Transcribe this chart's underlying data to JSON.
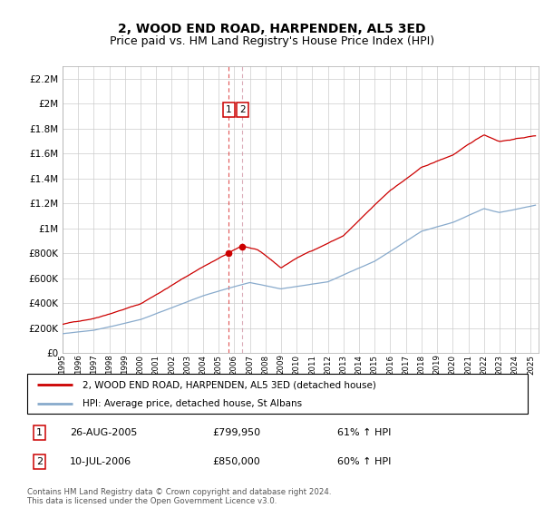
{
  "title": "2, WOOD END ROAD, HARPENDEN, AL5 3ED",
  "subtitle": "Price paid vs. HM Land Registry's House Price Index (HPI)",
  "legend_line1": "2, WOOD END ROAD, HARPENDEN, AL5 3ED (detached house)",
  "legend_line2": "HPI: Average price, detached house, St Albans",
  "footnote": "Contains HM Land Registry data © Crown copyright and database right 2024.\nThis data is licensed under the Open Government Licence v3.0.",
  "sale1_date": "26-AUG-2005",
  "sale1_price": "£799,950",
  "sale1_hpi": "61% ↑ HPI",
  "sale2_date": "10-JUL-2006",
  "sale2_price": "£850,000",
  "sale2_hpi": "60% ↑ HPI",
  "line_color_red": "#cc0000",
  "line_color_blue": "#88aacc",
  "grid_color": "#cccccc",
  "ylim": [
    0,
    2300000
  ],
  "yticks": [
    0,
    200000,
    400000,
    600000,
    800000,
    1000000,
    1200000,
    1400000,
    1600000,
    1800000,
    2000000,
    2200000
  ],
  "ytick_labels": [
    "£0",
    "£200K",
    "£400K",
    "£600K",
    "£800K",
    "£1M",
    "£1.2M",
    "£1.4M",
    "£1.6M",
    "£1.8M",
    "£2M",
    "£2.2M"
  ],
  "sale1_x": 2005.65,
  "sale1_y": 799950,
  "sale2_x": 2006.53,
  "sale2_y": 850000,
  "xmin": 1995.0,
  "xmax": 2025.5,
  "title_fontsize": 10,
  "subtitle_fontsize": 9
}
